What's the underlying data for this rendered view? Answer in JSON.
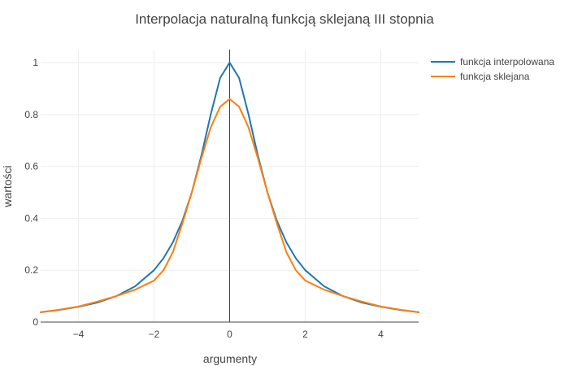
{
  "chart_data": {
    "type": "line",
    "title": "Interpolacja naturalną funkcją sklejaną III stopnia",
    "xlabel": "argumenty",
    "ylabel": "wartości",
    "xlim": [
      -5,
      5
    ],
    "ylim": [
      0,
      1.05
    ],
    "x_ticks": [
      -4,
      -2,
      0,
      2,
      4
    ],
    "x_tick_labels": [
      "−4",
      "−2",
      "0",
      "2",
      "4"
    ],
    "y_ticks": [
      0,
      0.2,
      0.4,
      0.6,
      0.8,
      1
    ],
    "y_tick_labels": [
      "0",
      "0.2",
      "0.4",
      "0.6",
      "0.8",
      "1"
    ],
    "grid": true,
    "legend_position": "top-right",
    "series": [
      {
        "name": "funkcja interpolowana",
        "color": "#1f77b4",
        "x": [
          -5,
          -4.5,
          -4,
          -3.5,
          -3,
          -2.5,
          -2,
          -1.75,
          -1.5,
          -1.25,
          -1,
          -0.75,
          -0.5,
          -0.25,
          0,
          0.25,
          0.5,
          0.75,
          1,
          1.25,
          1.5,
          1.75,
          2,
          2.5,
          3,
          3.5,
          4,
          4.5,
          5
        ],
        "y": [
          0.038,
          0.047,
          0.059,
          0.075,
          0.1,
          0.138,
          0.2,
          0.246,
          0.308,
          0.39,
          0.5,
          0.64,
          0.8,
          0.941,
          1,
          0.941,
          0.8,
          0.64,
          0.5,
          0.39,
          0.308,
          0.246,
          0.2,
          0.138,
          0.1,
          0.075,
          0.059,
          0.047,
          0.038
        ]
      },
      {
        "name": "funkcja sklejana",
        "color": "#ff7f0e",
        "x": [
          -5,
          -4.5,
          -4,
          -3.5,
          -3,
          -2.5,
          -2,
          -1.75,
          -1.5,
          -1.25,
          -1,
          -0.75,
          -0.5,
          -0.25,
          0,
          0.25,
          0.5,
          0.75,
          1,
          1.25,
          1.5,
          1.75,
          2,
          2.5,
          3,
          3.5,
          4,
          4.5,
          5
        ],
        "y": [
          0.038,
          0.048,
          0.06,
          0.079,
          0.1,
          0.125,
          0.16,
          0.2,
          0.27,
          0.38,
          0.5,
          0.63,
          0.75,
          0.83,
          0.86,
          0.83,
          0.75,
          0.63,
          0.5,
          0.38,
          0.27,
          0.2,
          0.16,
          0.125,
          0.1,
          0.079,
          0.06,
          0.048,
          0.038
        ]
      }
    ]
  }
}
